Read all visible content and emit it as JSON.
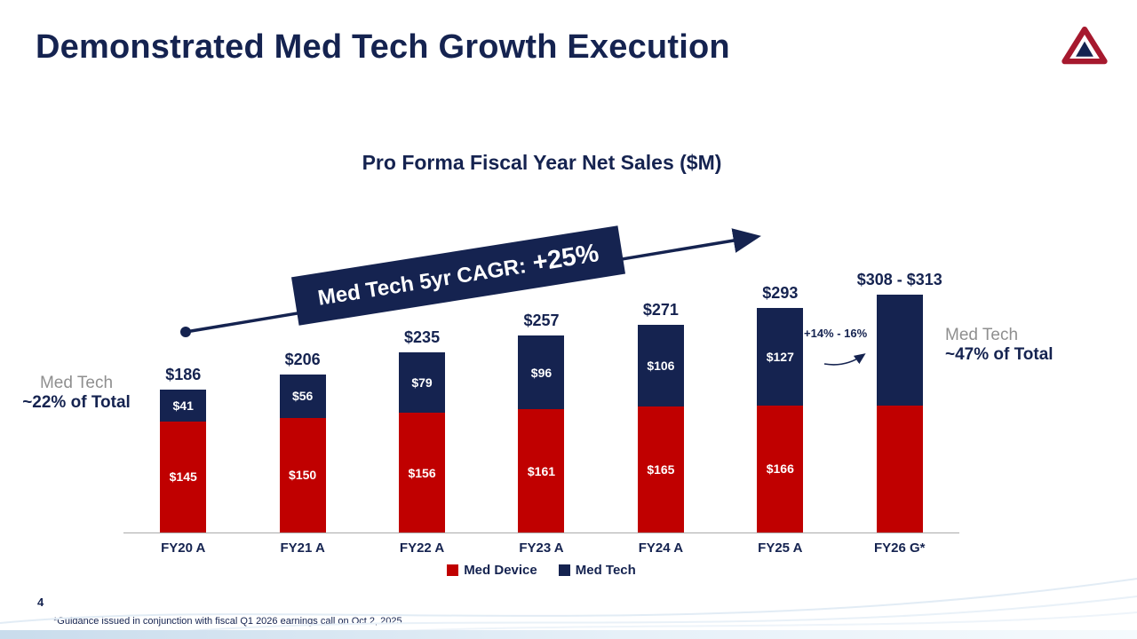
{
  "slide": {
    "title": "Demonstrated Med Tech Growth Execution",
    "page_number": "4",
    "footnote": "*Guidance issued in conjunction with fiscal Q1 2026 earnings call on Oct 2, 2025"
  },
  "colors": {
    "navy": "#152350",
    "red": "#C00000",
    "gray_label": "#8F8F8F"
  },
  "icons": {
    "logo": "triangle-loop-brand-logo"
  },
  "annotations": {
    "cagr_label": "Med Tech 5yr CAGR:",
    "cagr_value": "+25%",
    "fy26_growth": "+14% - 16%",
    "left": {
      "line1": "Med Tech",
      "line2": "~22% of Total"
    },
    "right": {
      "line1": "Med Tech",
      "line2": "~47% of Total"
    }
  },
  "chart_data": {
    "type": "bar",
    "stacked": true,
    "title": "Pro Forma Fiscal Year Net Sales ($M)",
    "categories": [
      "FY20 A",
      "FY21 A",
      "FY22 A",
      "FY23 A",
      "FY24 A",
      "FY25 A",
      "FY26 G*"
    ],
    "series": [
      {
        "name": "Med Device",
        "color": "#C00000",
        "values": [
          145,
          150,
          156,
          161,
          165,
          166,
          166
        ],
        "labels": [
          "$145",
          "$150",
          "$156",
          "$161",
          "$165",
          "$166",
          ""
        ]
      },
      {
        "name": "Med Tech",
        "color": "#152350",
        "values": [
          41,
          56,
          79,
          96,
          106,
          127,
          144
        ],
        "labels": [
          "$41",
          "$56",
          "$79",
          "$96",
          "$106",
          "$127",
          ""
        ]
      }
    ],
    "totals": [
      "$186",
      "$206",
      "$235",
      "$257",
      "$271",
      "$293",
      "$308 - $313"
    ],
    "ylim": [
      0,
      330
    ],
    "grid": false,
    "legend_position": "bottom",
    "legend": [
      {
        "label": "Med Device",
        "color": "#C00000"
      },
      {
        "label": "Med Tech",
        "color": "#152350"
      }
    ]
  }
}
